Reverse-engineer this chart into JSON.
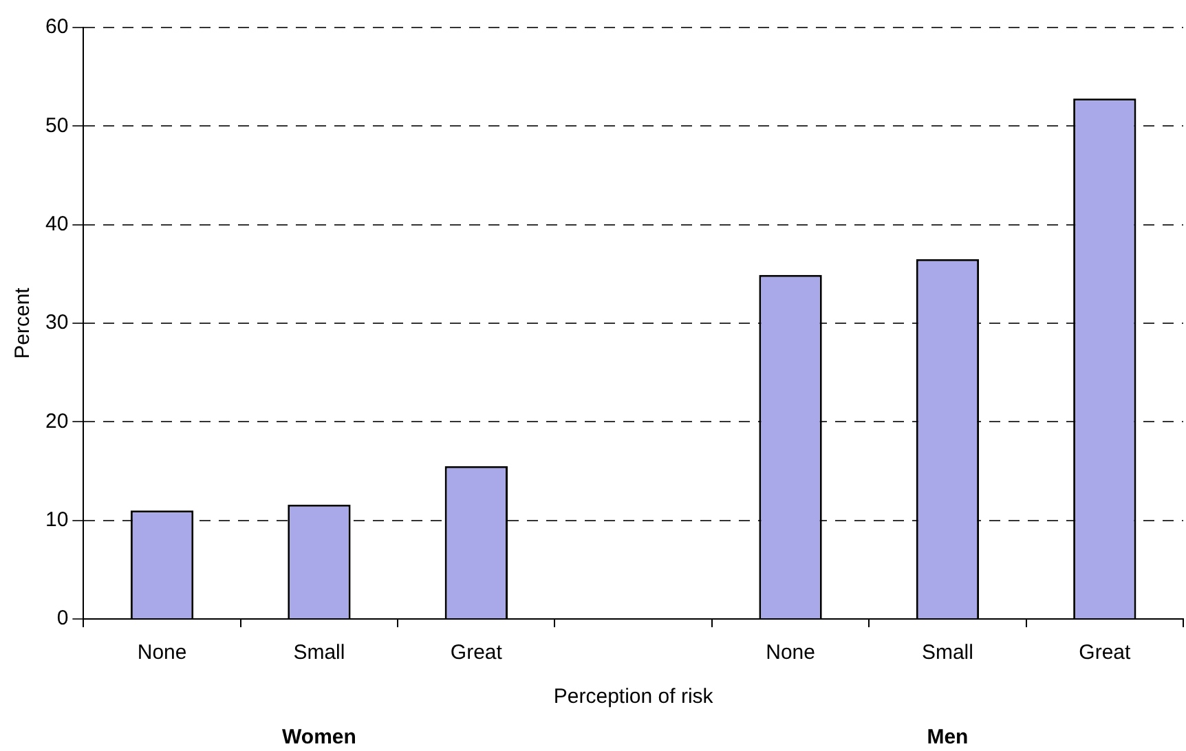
{
  "chart_data": {
    "type": "bar",
    "xlabel": "Perception of risk",
    "ylabel": "Percent",
    "categories": [
      "None",
      "Small",
      "Great",
      null,
      "None",
      "Small",
      "Great"
    ],
    "values": [
      11.0,
      11.6,
      15.5,
      null,
      34.9,
      36.5,
      52.8
    ],
    "color": "#a9a9ea",
    "ylim": [
      0,
      60
    ],
    "yticks": [
      0,
      10,
      20,
      30,
      40,
      50,
      60
    ],
    "grid": "y",
    "line_style": "dashed",
    "annotations": [
      "Women",
      "Men"
    ]
  }
}
